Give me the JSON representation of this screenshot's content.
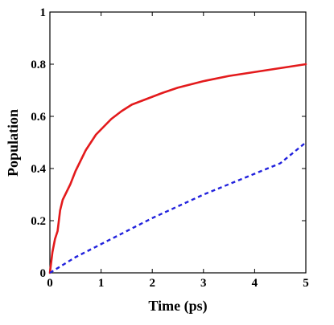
{
  "chart_data": {
    "type": "line",
    "xlabel": "Time (ps)",
    "ylabel": "Population",
    "xlim": [
      0,
      5
    ],
    "ylim": [
      0,
      1
    ],
    "xticks": [
      0,
      1,
      2,
      3,
      4,
      5
    ],
    "yticks": [
      0,
      0.2,
      0.4,
      0.6,
      0.8,
      1
    ],
    "xtick_labels": [
      "0",
      "1",
      "2",
      "3",
      "4",
      "5"
    ],
    "ytick_labels": [
      "0",
      "0.2",
      "0.4",
      "0.6",
      "0.8",
      "1"
    ],
    "grid": false,
    "legend": "none",
    "series": [
      {
        "style": "solid",
        "color": "#e31a1c",
        "x": [
          0,
          0.05,
          0.1,
          0.15,
          0.2,
          0.25,
          0.3,
          0.4,
          0.5,
          0.6,
          0.7,
          0.8,
          0.9,
          1.0,
          1.2,
          1.4,
          1.6,
          1.8,
          2.0,
          2.2,
          2.5,
          3.0,
          3.5,
          4.0,
          4.5,
          5.0
        ],
        "y": [
          0,
          0.08,
          0.13,
          0.16,
          0.24,
          0.28,
          0.3,
          0.34,
          0.39,
          0.43,
          0.47,
          0.5,
          0.53,
          0.55,
          0.59,
          0.62,
          0.645,
          0.66,
          0.675,
          0.69,
          0.71,
          0.735,
          0.755,
          0.77,
          0.785,
          0.8
        ]
      },
      {
        "style": "dashed",
        "color": "#2222dd",
        "x": [
          0,
          0.25,
          0.5,
          0.75,
          1.0,
          1.5,
          2.0,
          2.5,
          3.0,
          3.5,
          4.0,
          4.5,
          5.0
        ],
        "y": [
          0,
          0.03,
          0.06,
          0.085,
          0.11,
          0.16,
          0.21,
          0.255,
          0.3,
          0.34,
          0.38,
          0.42,
          0.5
        ]
      }
    ]
  }
}
